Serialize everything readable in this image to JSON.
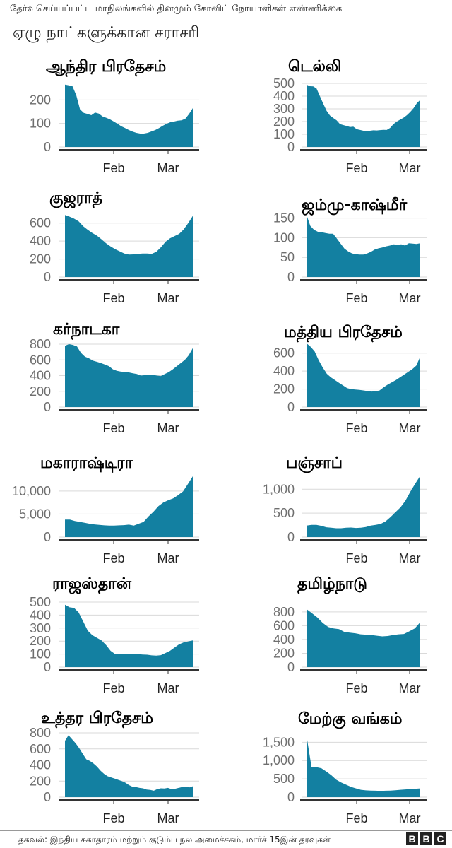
{
  "header": {
    "subtitle": "தேர்வுசெய்யப்பட்ட மாநிலங்களில் தினமும் கோவிட் நோயாளிகள் எண்ணிக்கை",
    "headline": "ஏழு நாட்களுக்கான சராசரி"
  },
  "footer": {
    "source": "தகவல்: இந்திய சுகாதாரம் மற்றும் குடும்ப நல அமைச்சகம், மார்ச் 15இன் தரவுகள்",
    "logo_letters": [
      "B",
      "B",
      "C"
    ]
  },
  "colors": {
    "area": "#1380A1",
    "grid": "#d9d9d9",
    "axis": "#333333",
    "tick_label": "#6e6e6e"
  },
  "chart_data": [
    {
      "type": "area",
      "title": "ஆந்திர பிரதேசம்",
      "x_ticks": [
        "Feb",
        "Mar"
      ],
      "y_ticks": [
        0,
        100,
        200
      ],
      "ylim": [
        0,
        270
      ],
      "values": [
        265,
        262,
        258,
        220,
        160,
        145,
        140,
        135,
        146,
        142,
        130,
        124,
        117,
        108,
        98,
        88,
        80,
        72,
        65,
        60,
        57,
        57,
        60,
        66,
        72,
        80,
        90,
        98,
        105,
        108,
        112,
        113,
        120,
        140,
        165
      ]
    },
    {
      "type": "area",
      "title": "டெல்லி",
      "x_ticks": [
        "Feb",
        "Mar"
      ],
      "y_ticks": [
        0,
        100,
        200,
        300,
        400,
        500
      ],
      "ylim": [
        0,
        500
      ],
      "values": [
        490,
        478,
        476,
        460,
        400,
        340,
        285,
        248,
        228,
        210,
        180,
        172,
        165,
        157,
        160,
        140,
        134,
        128,
        126,
        128,
        131,
        130,
        133,
        135,
        134,
        150,
        180,
        200,
        215,
        230,
        250,
        275,
        305,
        345,
        370
      ]
    },
    {
      "type": "area",
      "title": "குஜராத்",
      "x_ticks": [
        "Feb",
        "Mar"
      ],
      "y_ticks": [
        0,
        200,
        400,
        600
      ],
      "ylim": [
        0,
        700
      ],
      "values": [
        690,
        672,
        650,
        620,
        565,
        525,
        490,
        460,
        420,
        375,
        340,
        310,
        285,
        262,
        250,
        252,
        258,
        262,
        262,
        258,
        280,
        330,
        390,
        430,
        455,
        480,
        530,
        600,
        680
      ]
    },
    {
      "type": "area",
      "title": "ஜம்மு-காஷ்மீர்",
      "x_ticks": [
        "Feb",
        "Mar"
      ],
      "y_ticks": [
        0,
        50,
        100,
        150
      ],
      "ylim": [
        0,
        160
      ],
      "values": [
        158,
        130,
        120,
        115,
        114,
        112,
        110,
        110,
        98,
        85,
        72,
        65,
        60,
        58,
        57,
        57,
        60,
        64,
        70,
        73,
        75,
        78,
        80,
        83,
        82,
        83,
        80,
        86,
        85,
        84,
        86
      ]
    },
    {
      "type": "area",
      "title": "கர்நாடகா",
      "x_ticks": [
        "Feb",
        "Mar"
      ],
      "y_ticks": [
        0,
        200,
        400,
        600,
        800
      ],
      "ylim": [
        0,
        800
      ],
      "values": [
        780,
        800,
        790,
        770,
        690,
        640,
        620,
        590,
        575,
        560,
        540,
        520,
        480,
        460,
        450,
        448,
        440,
        430,
        420,
        400,
        405,
        405,
        410,
        400,
        395,
        420,
        445,
        480,
        520,
        560,
        600,
        660,
        750
      ]
    },
    {
      "type": "area",
      "title": "மத்திய பிரதேசம்",
      "x_ticks": [
        "Feb",
        "Mar"
      ],
      "y_ticks": [
        0,
        200,
        400,
        600
      ],
      "ylim": [
        0,
        700
      ],
      "values": [
        710,
        670,
        620,
        520,
        440,
        370,
        330,
        300,
        270,
        240,
        210,
        200,
        195,
        190,
        185,
        178,
        172,
        175,
        185,
        220,
        250,
        275,
        300,
        330,
        360,
        390,
        420,
        460,
        560
      ]
    },
    {
      "type": "area",
      "title": "மகாராஷ்டிரா",
      "x_ticks": [
        "Feb",
        "Mar"
      ],
      "y_ticks": [
        0,
        5000,
        10000
      ],
      "y_tick_labels": [
        "0",
        "5,000",
        "10,000"
      ],
      "ylim": [
        0,
        13500
      ],
      "values": [
        3800,
        3800,
        3500,
        3300,
        3100,
        2900,
        2750,
        2650,
        2550,
        2500,
        2500,
        2550,
        2600,
        2700,
        2500,
        2900,
        3300,
        4500,
        5500,
        6700,
        7500,
        8000,
        8400,
        9100,
        9900,
        11500,
        13200
      ]
    },
    {
      "type": "area",
      "title": "பஞ்சாப்",
      "x_ticks": [
        "Feb",
        "Mar"
      ],
      "y_ticks": [
        0,
        500,
        1000
      ],
      "y_tick_labels": [
        "0",
        "500",
        "1,000"
      ],
      "ylim": [
        0,
        1300
      ],
      "values": [
        240,
        255,
        255,
        235,
        205,
        195,
        185,
        185,
        195,
        200,
        190,
        195,
        210,
        240,
        255,
        275,
        330,
        420,
        520,
        620,
        760,
        950,
        1120,
        1280
      ]
    },
    {
      "type": "area",
      "title": "ராஜஸ்தான்",
      "x_ticks": [
        "Feb",
        "Mar"
      ],
      "y_ticks": [
        0,
        100,
        200,
        300,
        400,
        500
      ],
      "ylim": [
        0,
        500
      ],
      "values": [
        480,
        460,
        455,
        420,
        350,
        280,
        245,
        225,
        205,
        170,
        125,
        100,
        100,
        100,
        98,
        100,
        100,
        97,
        95,
        90,
        88,
        92,
        108,
        125,
        150,
        175,
        190,
        198,
        205
      ]
    },
    {
      "type": "area",
      "title": "தமிழ்நாடு",
      "x_ticks": [
        "Feb",
        "Mar"
      ],
      "y_ticks": [
        0,
        200,
        400,
        600,
        800
      ],
      "ylim": [
        0,
        860
      ],
      "values": [
        840,
        780,
        720,
        640,
        580,
        560,
        550,
        510,
        500,
        490,
        475,
        470,
        465,
        455,
        445,
        450,
        465,
        475,
        480,
        520,
        560,
        650
      ]
    },
    {
      "type": "area",
      "title": "உத்தர பிரதேசம்",
      "x_ticks": [
        "Feb",
        "Mar"
      ],
      "y_ticks": [
        0,
        200,
        400,
        600,
        800
      ],
      "ylim": [
        0,
        800
      ],
      "values": [
        700,
        770,
        720,
        670,
        610,
        540,
        470,
        450,
        420,
        380,
        330,
        290,
        260,
        245,
        230,
        215,
        200,
        180,
        150,
        130,
        125,
        115,
        110,
        95,
        90,
        80,
        100,
        110,
        108,
        115,
        100,
        105,
        115,
        125,
        130,
        120,
        135
      ]
    },
    {
      "type": "area",
      "title": "மேற்கு வங்கம்",
      "x_ticks": [
        "Feb",
        "Mar"
      ],
      "y_ticks": [
        0,
        500,
        1000,
        1500
      ],
      "y_tick_labels": [
        "0",
        "500",
        "1,000",
        "1,500"
      ],
      "ylim": [
        0,
        1700
      ],
      "values": [
        1680,
        830,
        820,
        790,
        700,
        600,
        480,
        400,
        340,
        280,
        240,
        200,
        185,
        180,
        175,
        170,
        175,
        180,
        190,
        200,
        210,
        220,
        230,
        240
      ]
    }
  ],
  "panels": [
    {
      "title": "ஆந்திர பிரதேசம்"
    },
    {
      "title": "டெல்லி"
    },
    {
      "title": "குஜராத்"
    },
    {
      "title": "ஜம்மு-காஷ்மீர்"
    },
    {
      "title": "கர்நாடகா"
    },
    {
      "title": "மத்திய பிரதேசம்"
    },
    {
      "title": "மகாராஷ்டிரா"
    },
    {
      "title": "பஞ்சாப்"
    },
    {
      "title": "ராஜஸ்தான்"
    },
    {
      "title": "தமிழ்நாடு"
    },
    {
      "title": "உத்தர பிரதேசம்"
    },
    {
      "title": "மேற்கு வங்கம்"
    }
  ]
}
